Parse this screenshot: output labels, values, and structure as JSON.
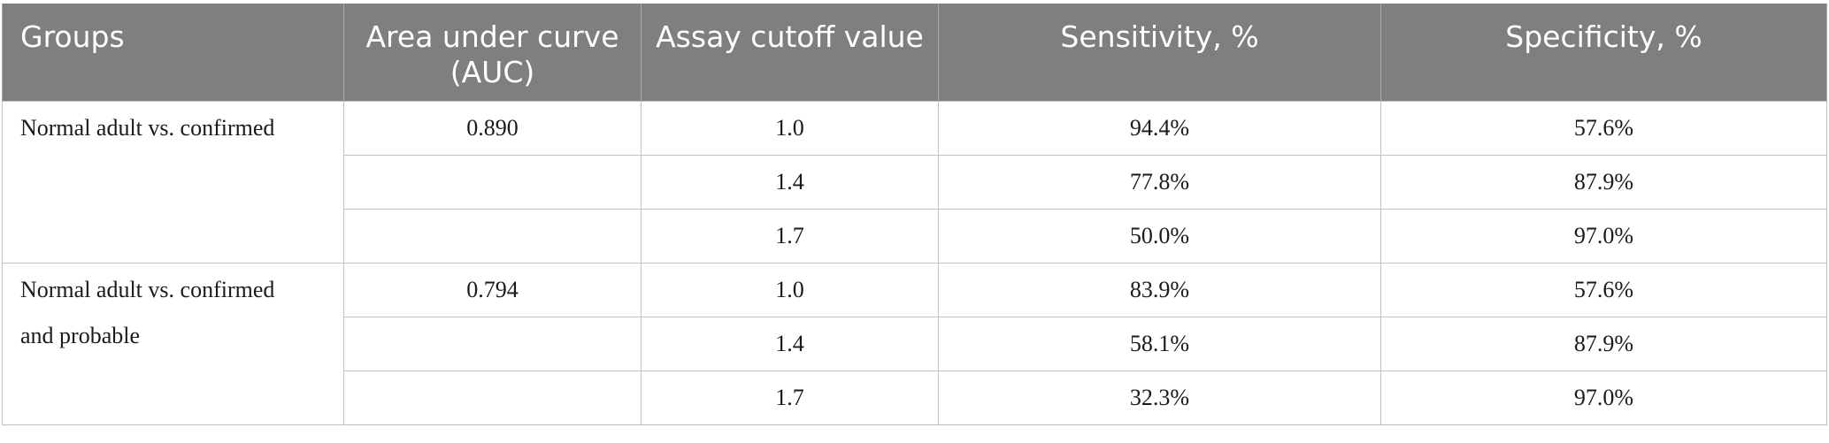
{
  "table": {
    "headers": [
      "Groups",
      "Area under curve (AUC)",
      "Assay cutoff value",
      "Sensitivity, %",
      "Specificity, %"
    ],
    "groups": [
      {
        "label": "Normal adult vs. confirmed",
        "auc": "0.890",
        "rows": [
          {
            "cutoff": "1.0",
            "sensitivity": "94.4%",
            "specificity": "57.6%"
          },
          {
            "cutoff": "1.4",
            "sensitivity": "77.8%",
            "specificity": "87.9%"
          },
          {
            "cutoff": "1.7",
            "sensitivity": "50.0%",
            "specificity": "97.0%"
          }
        ]
      },
      {
        "label": "Normal adult vs. confirmed and probable",
        "auc": "0.794",
        "rows": [
          {
            "cutoff": "1.0",
            "sensitivity": "83.9%",
            "specificity": "57.6%"
          },
          {
            "cutoff": "1.4",
            "sensitivity": "58.1%",
            "specificity": "87.9%"
          },
          {
            "cutoff": "1.7",
            "sensitivity": "32.3%",
            "specificity": "97.0%"
          }
        ]
      }
    ]
  }
}
